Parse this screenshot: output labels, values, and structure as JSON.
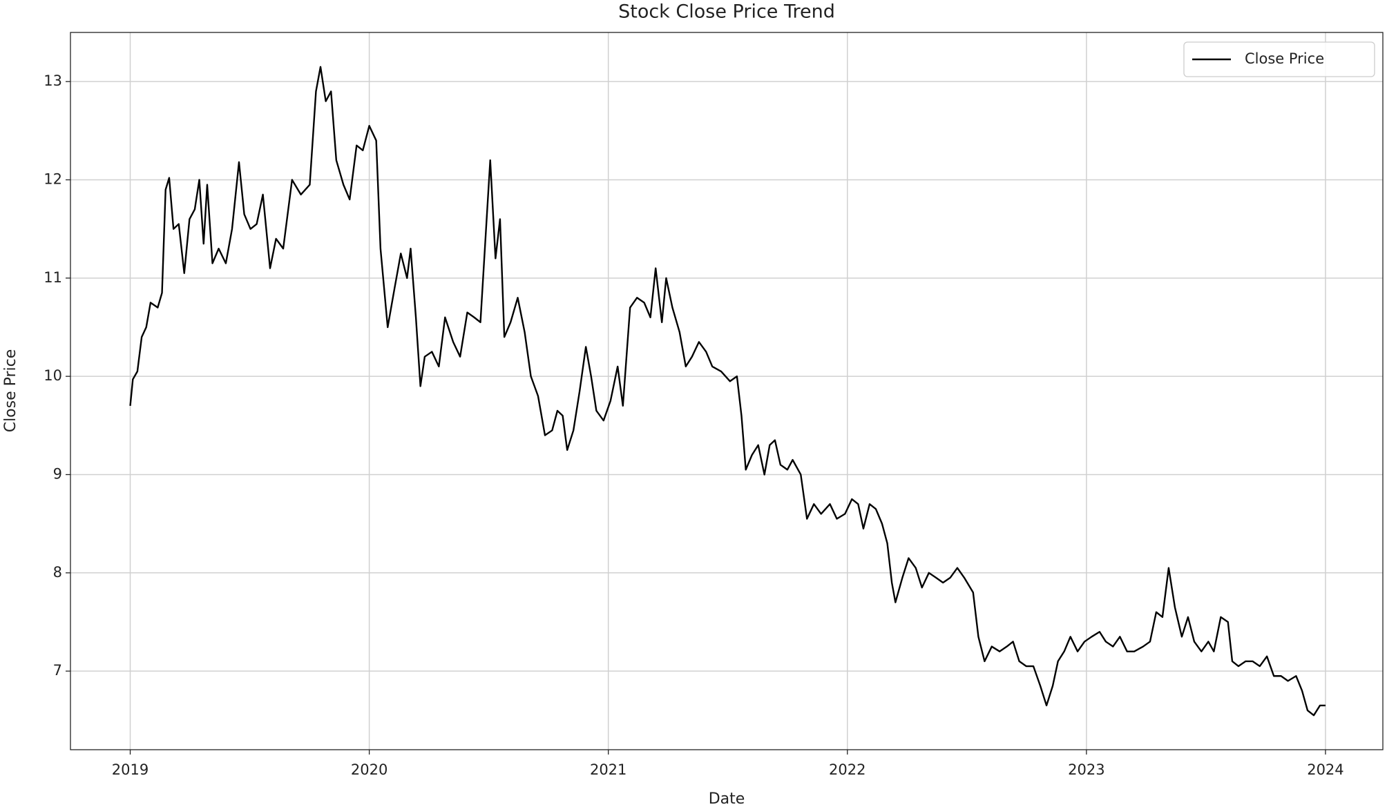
{
  "chart_data": {
    "type": "line",
    "title": "Stock Close Price Trend",
    "xlabel": "Date",
    "ylabel": "Close Price",
    "x": [
      2019.0,
      2019.011,
      2019.03,
      2019.048,
      2019.067,
      2019.085,
      2019.115,
      2019.133,
      2019.148,
      2019.163,
      2019.181,
      2019.203,
      2019.226,
      2019.248,
      2019.27,
      2019.289,
      2019.307,
      2019.322,
      2019.344,
      2019.37,
      2019.4,
      2019.426,
      2019.455,
      2019.477,
      2019.503,
      2019.529,
      2019.555,
      2019.585,
      2019.61,
      2019.64,
      2019.677,
      2019.714,
      2019.751,
      2019.777,
      2019.796,
      2019.818,
      2019.84,
      2019.862,
      2019.892,
      2019.918,
      2019.947,
      2019.973,
      2020.0,
      2020.029,
      2020.047,
      2020.077,
      2020.106,
      2020.132,
      2020.158,
      2020.173,
      2020.195,
      2020.214,
      2020.232,
      2020.262,
      2020.291,
      2020.317,
      2020.351,
      2020.38,
      2020.41,
      2020.439,
      2020.465,
      2020.491,
      2020.506,
      2020.528,
      2020.547,
      2020.565,
      2020.591,
      2020.621,
      2020.65,
      2020.676,
      2020.706,
      2020.735,
      2020.765,
      2020.787,
      2020.809,
      2020.828,
      2020.854,
      2020.88,
      2020.906,
      2020.928,
      2020.95,
      2020.98,
      2021.009,
      2021.039,
      2021.061,
      2021.091,
      2021.12,
      2021.15,
      2021.176,
      2021.198,
      2021.224,
      2021.242,
      2021.268,
      2021.298,
      2021.324,
      2021.35,
      2021.379,
      2021.409,
      2021.435,
      2021.472,
      2021.509,
      2021.538,
      2021.557,
      2021.575,
      2021.601,
      2021.627,
      2021.653,
      2021.675,
      2021.697,
      2021.72,
      2021.749,
      2021.771,
      2021.805,
      2021.831,
      2021.86,
      2021.89,
      2021.927,
      2021.956,
      2021.99,
      2022.019,
      2022.045,
      2022.067,
      2022.093,
      2022.119,
      2022.145,
      2022.167,
      2022.186,
      2022.201,
      2022.23,
      2022.256,
      2022.286,
      2022.312,
      2022.341,
      2022.371,
      2022.4,
      2022.43,
      2022.46,
      2022.489,
      2022.526,
      2022.548,
      2022.574,
      2022.604,
      2022.637,
      2022.667,
      2022.693,
      2022.719,
      2022.748,
      2022.778,
      2022.807,
      2022.833,
      2022.859,
      2022.881,
      2022.907,
      2022.933,
      2022.963,
      2022.992,
      2023.022,
      2023.055,
      2023.081,
      2023.111,
      2023.14,
      2023.17,
      2023.2,
      2023.237,
      2023.266,
      2023.292,
      2023.318,
      2023.344,
      2023.37,
      2023.399,
      2023.425,
      2023.451,
      2023.481,
      2023.51,
      2023.533,
      2023.562,
      2023.592,
      2023.61,
      2023.636,
      2023.666,
      2023.695,
      2023.725,
      2023.755,
      2023.784,
      2023.814,
      2023.843,
      2023.877,
      2023.902,
      2023.925,
      2023.951,
      2023.977,
      2024.0
    ],
    "series": [
      {
        "name": "Close Price",
        "color": "#000000",
        "values": [
          9.7,
          9.97,
          10.05,
          10.4,
          10.5,
          10.75,
          10.7,
          10.85,
          11.9,
          12.02,
          11.5,
          11.55,
          11.05,
          11.6,
          11.7,
          12.0,
          11.35,
          11.95,
          11.15,
          11.3,
          11.15,
          11.5,
          12.18,
          11.65,
          11.5,
          11.55,
          11.85,
          11.1,
          11.4,
          11.3,
          12.0,
          11.85,
          11.95,
          12.9,
          13.15,
          12.8,
          12.9,
          12.2,
          11.95,
          11.8,
          12.35,
          12.3,
          12.55,
          12.4,
          11.3,
          10.5,
          10.9,
          11.25,
          11.0,
          11.3,
          10.6,
          9.9,
          10.2,
          10.25,
          10.1,
          10.6,
          10.35,
          10.2,
          10.65,
          10.6,
          10.55,
          11.6,
          12.2,
          11.2,
          11.6,
          10.4,
          10.55,
          10.8,
          10.45,
          10.0,
          9.8,
          9.4,
          9.45,
          9.65,
          9.6,
          9.25,
          9.45,
          9.85,
          10.3,
          10.0,
          9.65,
          9.55,
          9.75,
          10.1,
          9.7,
          10.7,
          10.8,
          10.75,
          10.6,
          11.1,
          10.55,
          11.0,
          10.7,
          10.45,
          10.1,
          10.2,
          10.35,
          10.25,
          10.1,
          10.05,
          9.95,
          10.0,
          9.6,
          9.05,
          9.2,
          9.3,
          9.0,
          9.3,
          9.35,
          9.1,
          9.05,
          9.15,
          9.0,
          8.55,
          8.7,
          8.6,
          8.7,
          8.55,
          8.6,
          8.75,
          8.7,
          8.45,
          8.7,
          8.65,
          8.5,
          8.3,
          7.9,
          7.7,
          7.95,
          8.15,
          8.05,
          7.85,
          8.0,
          7.95,
          7.9,
          7.95,
          8.05,
          7.95,
          7.8,
          7.35,
          7.1,
          7.25,
          7.2,
          7.25,
          7.3,
          7.1,
          7.05,
          7.05,
          6.85,
          6.65,
          6.85,
          7.1,
          7.2,
          7.35,
          7.2,
          7.3,
          7.35,
          7.4,
          7.3,
          7.25,
          7.35,
          7.2,
          7.2,
          7.25,
          7.3,
          7.6,
          7.55,
          8.05,
          7.65,
          7.35,
          7.55,
          7.3,
          7.2,
          7.3,
          7.2,
          7.55,
          7.5,
          7.1,
          7.05,
          7.1,
          7.1,
          7.05,
          7.15,
          6.95,
          6.95,
          6.9,
          6.95,
          6.8,
          6.6,
          6.55,
          6.65,
          6.65
        ]
      }
    ],
    "xlim": [
      2018.75,
      2024.24
    ],
    "xticks": [
      2019,
      2020,
      2021,
      2022,
      2023,
      2024
    ],
    "ylim": [
      6.2,
      13.5
    ],
    "yticks": [
      7,
      8,
      9,
      10,
      11,
      12,
      13
    ],
    "grid": true,
    "legend": "upper right"
  }
}
